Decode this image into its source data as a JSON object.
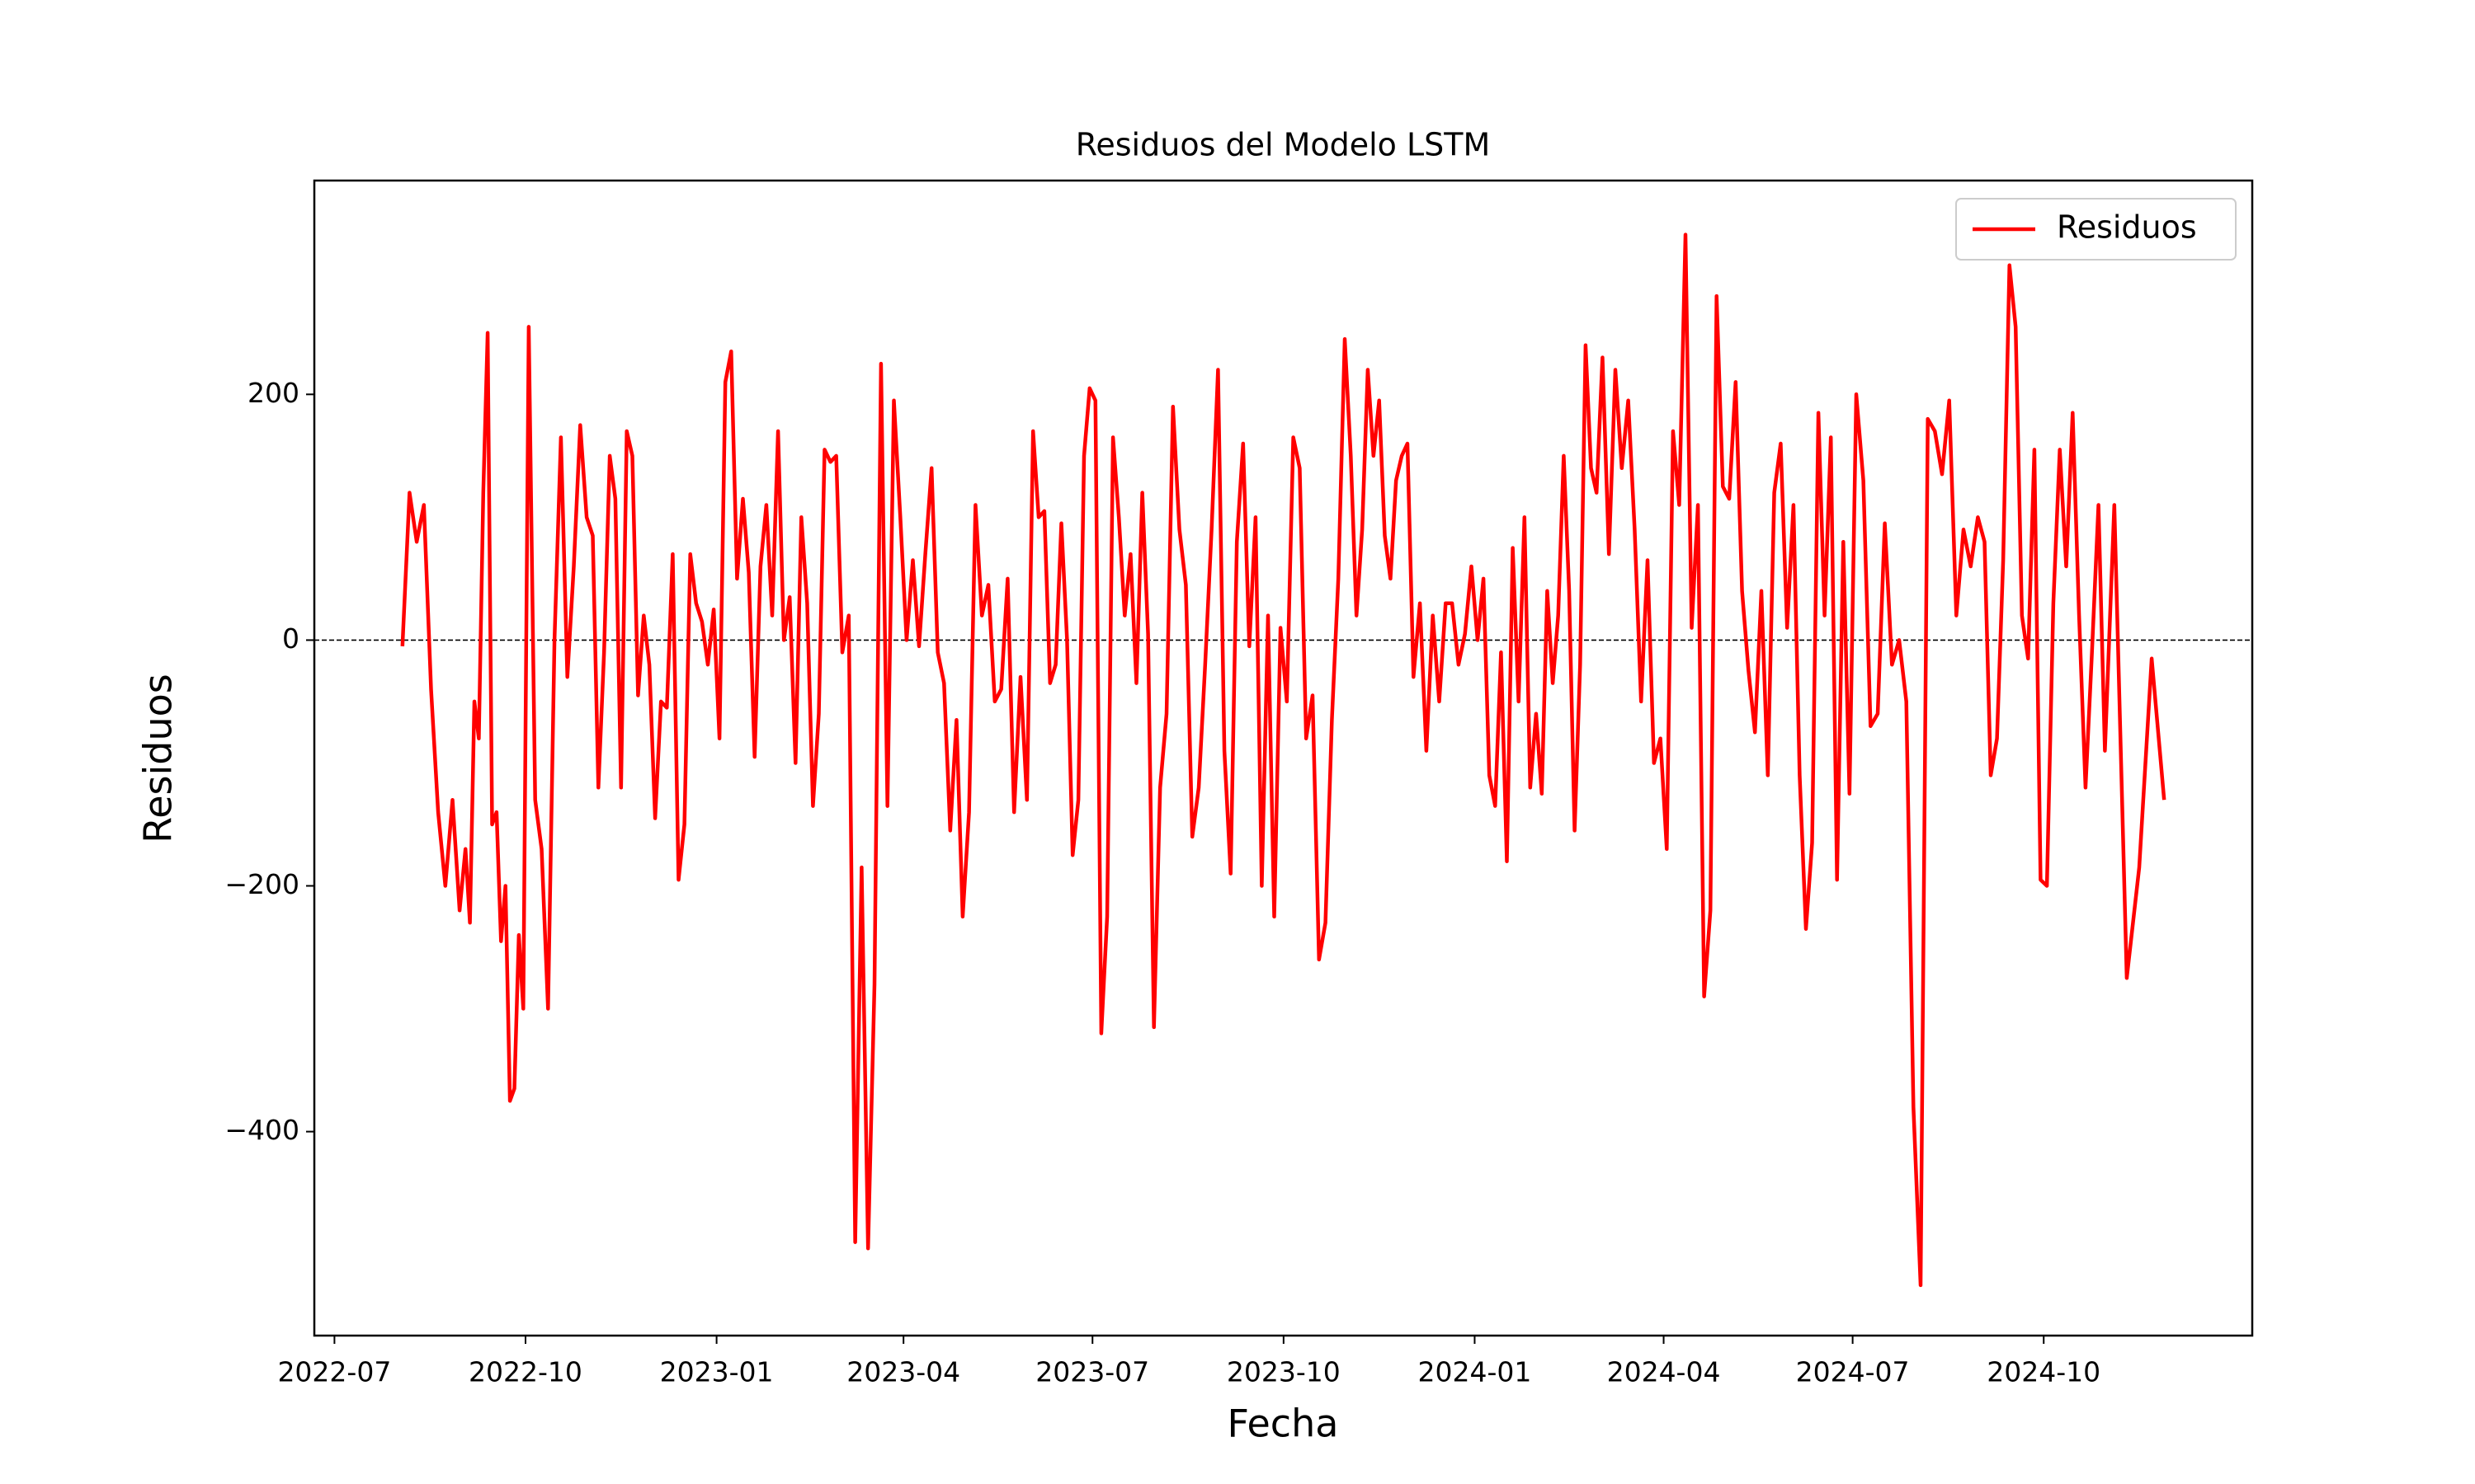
{
  "chart_data": {
    "type": "line",
    "title": "Residuos del Modelo LSTM",
    "xlabel": "Fecha",
    "ylabel": "Residuos",
    "x": [
      "2022-08",
      "2022-08",
      "2022-08",
      "2022-08",
      "2022-08",
      "2022-08",
      "2022-08",
      "2022-08",
      "2022-08",
      "2022-09",
      "2022-09",
      "2022-09",
      "2022-09",
      "2022-09",
      "2022-09",
      "2022-09",
      "2022-09",
      "2022-09",
      "2022-09",
      "2022-09",
      "2022-09",
      "2022-09",
      "2022-09",
      "2022-10",
      "2022-10",
      "2022-10",
      "2022-10",
      "2022-10",
      "2022-10",
      "2022-10",
      "2022-10",
      "2022-10",
      "2022-10",
      "2022-11",
      "2022-11",
      "2022-11",
      "2022-11",
      "2022-11",
      "2022-11",
      "2022-11",
      "2022-11",
      "2022-11",
      "2022-11",
      "2022-11",
      "2022-12",
      "2022-12",
      "2022-12",
      "2022-12",
      "2022-12",
      "2022-12",
      "2022-12",
      "2022-12",
      "2022-12",
      "2022-12",
      "2022-12",
      "2023-01",
      "2023-01",
      "2023-01",
      "2023-01",
      "2023-01",
      "2023-01",
      "2023-01",
      "2023-01",
      "2023-01",
      "2023-01",
      "2023-01",
      "2023-02",
      "2023-02",
      "2023-02",
      "2023-02",
      "2023-02",
      "2023-02",
      "2023-02",
      "2023-02",
      "2023-02",
      "2023-02",
      "2023-03",
      "2023-03",
      "2023-03",
      "2023-03",
      "2023-03",
      "2023-03",
      "2023-03",
      "2023-03",
      "2023-03",
      "2023-03",
      "2023-04",
      "2023-04",
      "2023-04",
      "2023-04",
      "2023-04",
      "2023-04",
      "2023-04",
      "2023-04",
      "2023-04",
      "2023-04",
      "2023-05",
      "2023-05",
      "2023-05",
      "2023-05",
      "2023-05",
      "2023-05",
      "2023-05",
      "2023-05",
      "2023-05",
      "2023-05",
      "2023-06",
      "2023-06",
      "2023-06",
      "2023-06",
      "2023-06",
      "2023-06",
      "2023-06",
      "2023-06",
      "2023-06",
      "2023-06",
      "2023-06",
      "2023-07",
      "2023-07",
      "2023-07",
      "2023-07",
      "2023-07",
      "2023-07",
      "2023-07",
      "2023-07",
      "2023-07",
      "2023-07",
      "2023-07",
      "2023-08",
      "2023-08",
      "2023-08",
      "2023-08",
      "2023-08",
      "2023-08",
      "2023-08",
      "2023-08",
      "2023-08",
      "2023-08",
      "2023-09",
      "2023-09",
      "2023-09",
      "2023-09",
      "2023-09",
      "2023-09",
      "2023-09",
      "2023-09",
      "2023-09",
      "2023-09",
      "2023-10",
      "2023-10",
      "2023-10",
      "2023-10",
      "2023-10",
      "2023-10",
      "2023-10",
      "2023-10",
      "2023-10",
      "2023-10",
      "2023-11",
      "2023-11",
      "2023-11",
      "2023-11",
      "2023-11",
      "2023-11",
      "2023-11",
      "2023-11",
      "2023-11",
      "2023-11",
      "2023-11",
      "2023-12",
      "2023-12",
      "2023-12",
      "2023-12",
      "2023-12",
      "2023-12",
      "2023-12",
      "2023-12",
      "2023-12",
      "2023-12",
      "2024-01",
      "2024-01",
      "2024-01",
      "2024-01",
      "2024-01",
      "2024-01",
      "2024-01",
      "2024-01",
      "2024-01",
      "2024-01",
      "2024-01",
      "2024-02",
      "2024-02",
      "2024-02",
      "2024-02",
      "2024-02",
      "2024-02",
      "2024-02",
      "2024-02",
      "2024-02",
      "2024-02",
      "2024-02",
      "2024-03",
      "2024-03",
      "2024-03",
      "2024-03",
      "2024-03",
      "2024-03",
      "2024-03",
      "2024-03",
      "2024-03",
      "2024-03",
      "2024-04",
      "2024-04",
      "2024-04",
      "2024-04",
      "2024-04",
      "2024-04",
      "2024-04",
      "2024-04",
      "2024-04",
      "2024-04",
      "2024-05",
      "2024-05",
      "2024-05",
      "2024-05",
      "2024-05",
      "2024-05",
      "2024-05",
      "2024-05",
      "2024-05",
      "2024-05",
      "2024-06",
      "2024-06",
      "2024-06",
      "2024-06",
      "2024-06",
      "2024-06",
      "2024-06",
      "2024-06",
      "2024-06",
      "2024-06",
      "2024-07",
      "2024-07",
      "2024-07",
      "2024-07",
      "2024-07",
      "2024-07",
      "2024-07",
      "2024-07",
      "2024-07",
      "2024-08",
      "2024-08",
      "2024-08",
      "2024-08",
      "2024-08",
      "2024-08",
      "2024-08",
      "2024-08",
      "2024-08",
      "2024-09",
      "2024-09",
      "2024-09",
      "2024-09",
      "2024-09",
      "2024-09",
      "2024-09",
      "2024-09",
      "2024-09",
      "2024-09",
      "2024-10",
      "2024-10",
      "2024-10",
      "2024-10",
      "2024-10",
      "2024-10",
      "2024-10",
      "2024-10",
      "2024-10",
      "2024-10",
      "2024-11",
      "2024-11",
      "2024-11",
      "2024-11",
      "2024-11"
    ],
    "series": [
      {
        "name": "Residuos",
        "color": "#ff0000",
        "values": [
          -5,
          120,
          80,
          110,
          -40,
          -140,
          -200,
          -130,
          -220,
          -170,
          -230,
          -50,
          -80,
          120,
          250,
          -150,
          -140,
          -245,
          -200,
          -375,
          -365,
          -240,
          -300,
          255,
          -130,
          -170,
          -300,
          0,
          165,
          -30,
          60,
          175,
          100,
          85,
          -120,
          -10,
          150,
          115,
          -120,
          170,
          150,
          -45,
          20,
          -20,
          -145,
          -50,
          -55,
          70,
          -195,
          -150,
          70,
          30,
          15,
          -20,
          25,
          -80,
          210,
          235,
          50,
          115,
          55,
          -95,
          60,
          110,
          20,
          170,
          0,
          35,
          -100,
          100,
          30,
          -135,
          -60,
          155,
          145,
          150,
          -10,
          20,
          -490,
          -185,
          -495,
          -280,
          225,
          -135,
          195,
          100,
          0,
          65,
          -5,
          70,
          140,
          -10,
          -35,
          -155,
          -65,
          -225,
          -140,
          110,
          20,
          45,
          -50,
          -40,
          50,
          -140,
          -30,
          -130,
          170,
          100,
          105,
          -35,
          -20,
          95,
          0,
          -175,
          -130,
          150,
          205,
          195,
          -320,
          -225,
          165,
          100,
          20,
          70,
          -35,
          120,
          5,
          -315,
          -120,
          -60,
          190,
          90,
          45,
          -160,
          -120,
          -20,
          90,
          220,
          -90,
          -190,
          80,
          160,
          -5,
          100,
          -200,
          20,
          -225,
          10,
          -50,
          165,
          140,
          -80,
          -45,
          -260,
          -230,
          -65,
          50,
          245,
          150,
          20,
          90,
          220,
          150,
          195,
          85,
          50,
          130,
          150,
          160,
          -30,
          30,
          -90,
          20,
          -50,
          30,
          30,
          -20,
          5,
          60,
          0,
          50,
          -110,
          -135,
          -10,
          -180,
          75,
          -50,
          100,
          -120,
          -60,
          -125,
          40,
          -35,
          20,
          150,
          40,
          -155,
          -20,
          240,
          140,
          120,
          230,
          70,
          220,
          140,
          195,
          90,
          -50,
          65,
          -100,
          -80,
          -170,
          170,
          110,
          330,
          10,
          110,
          -290,
          -220,
          280,
          125,
          115,
          210,
          40,
          -25,
          -75,
          40,
          -110,
          120,
          160,
          10,
          110,
          -110,
          -235,
          -165,
          185,
          20,
          165,
          -195,
          80,
          -125,
          200,
          130,
          -70,
          -60,
          95,
          -20,
          0,
          -50,
          -380,
          -525,
          180,
          170,
          135,
          195,
          20,
          90,
          60,
          100,
          80,
          -110,
          -80,
          65,
          305,
          255,
          20,
          -15,
          155,
          -195,
          -200,
          30,
          155,
          60,
          185,
          20,
          -120,
          -10,
          110,
          -90,
          110,
          -275,
          -185,
          -15,
          -130
        ]
      }
    ],
    "hline": 0,
    "ylim": [
      -566,
      374
    ],
    "yticks": [
      {
        "value": -400,
        "label": "−400"
      },
      {
        "value": -200,
        "label": "−200"
      },
      0,
      200
    ],
    "xticks": [
      "2022-07",
      "2022-10",
      "2023-01",
      "2023-04",
      "2023-07",
      "2023-10",
      "2024-01",
      "2024-04",
      "2024-07",
      "2024-10"
    ],
    "legend": "upper right",
    "grid": false
  }
}
